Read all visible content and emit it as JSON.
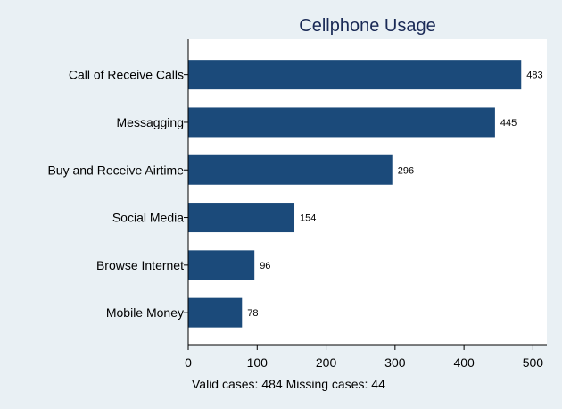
{
  "chart_data": {
    "type": "bar",
    "orientation": "horizontal",
    "title": "Cellphone Usage",
    "categories": [
      "Call of Receive Calls",
      "Messagging",
      "Buy and Receive Airtime",
      "Social Media",
      "Browse Internet",
      "Mobile Money"
    ],
    "values": [
      483,
      445,
      296,
      154,
      96,
      78
    ],
    "data_labels": [
      "483",
      "445",
      "296",
      "154",
      "96",
      "78"
    ],
    "xlim": [
      0,
      500
    ],
    "xticks": [
      "0",
      "100",
      "200",
      "300",
      "400",
      "500"
    ],
    "xlabel": "",
    "ylabel": "",
    "grid": false,
    "legend": "none",
    "bar_color": "#1b4a7a",
    "background_color": "#e9f0f4",
    "plot_background_color": "#ffffff"
  },
  "footnote": "Valid cases: 484 Missing cases: 44"
}
